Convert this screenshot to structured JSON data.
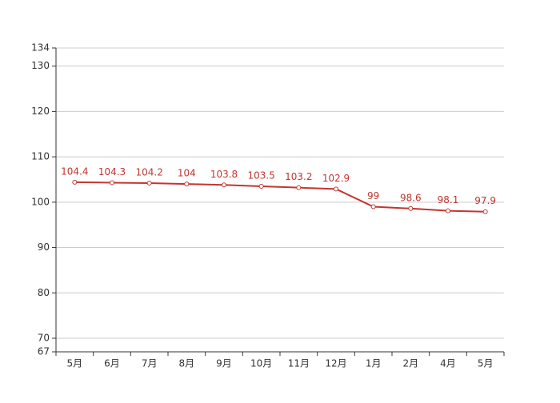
{
  "chart_data": {
    "type": "line",
    "categories": [
      "5月",
      "6月",
      "7月",
      "8月",
      "9月",
      "10月",
      "11月",
      "12月",
      "1月",
      "2月",
      "4月",
      "5月"
    ],
    "values": [
      104.4,
      104.3,
      104.2,
      104,
      103.8,
      103.5,
      103.2,
      102.9,
      99,
      98.6,
      98.1,
      97.9
    ],
    "color": "#c23531",
    "ylim": [
      67,
      134
    ],
    "yticks": [
      67,
      70,
      80,
      90,
      100,
      110,
      120,
      130,
      134
    ],
    "grid": true
  }
}
